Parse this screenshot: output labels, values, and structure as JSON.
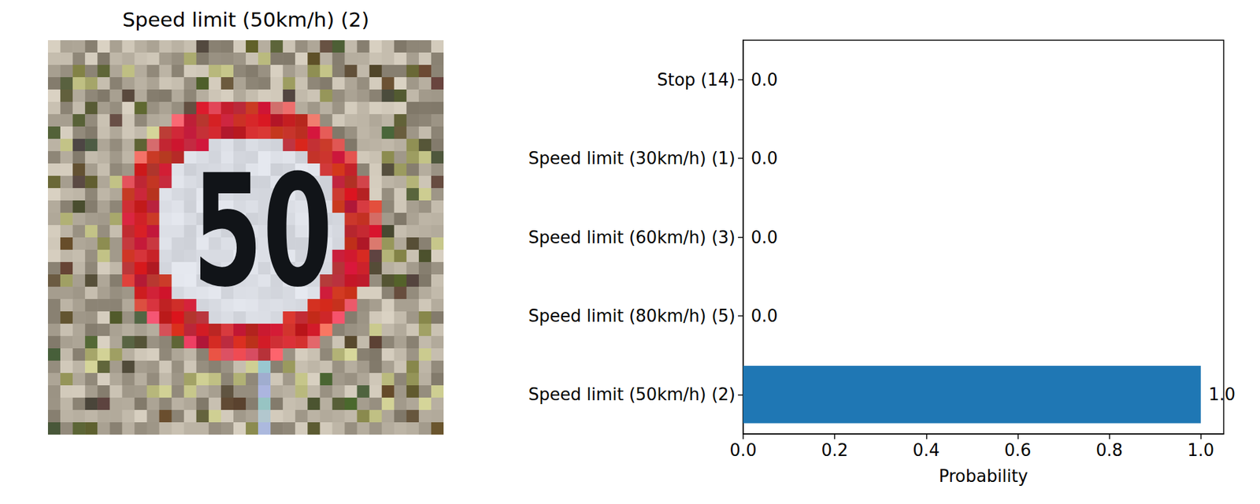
{
  "chart_data": [
    {
      "type": "image",
      "title": "Speed limit (50km/h) (2)",
      "annotations": [
        "50"
      ]
    },
    {
      "type": "bar",
      "orientation": "horizontal",
      "categories": [
        "Speed limit (50km/h) (2)",
        "Speed limit (80km/h) (5)",
        "Speed limit (60km/h) (3)",
        "Speed limit (30km/h) (1)",
        "Stop (14)"
      ],
      "values": [
        1.0,
        0.0,
        0.0,
        0.0,
        0.0
      ],
      "value_labels": [
        "1.0",
        "0.0",
        "0.0",
        "0.0",
        "0.0"
      ],
      "data_labels": true,
      "color": "#1f77b4",
      "xlabel": "Probability",
      "xlim": [
        0,
        1.05
      ],
      "xticks": [
        {
          "value": 0,
          "label": "0.0"
        },
        {
          "value": 0.2,
          "label": "0.2"
        },
        {
          "value": 0.4,
          "label": "0.4"
        },
        {
          "value": 0.6,
          "label": "0.6"
        },
        {
          "value": 0.8,
          "label": "0.8"
        },
        {
          "value": 1.0,
          "label": "1.0"
        }
      ],
      "grid": false
    }
  ]
}
